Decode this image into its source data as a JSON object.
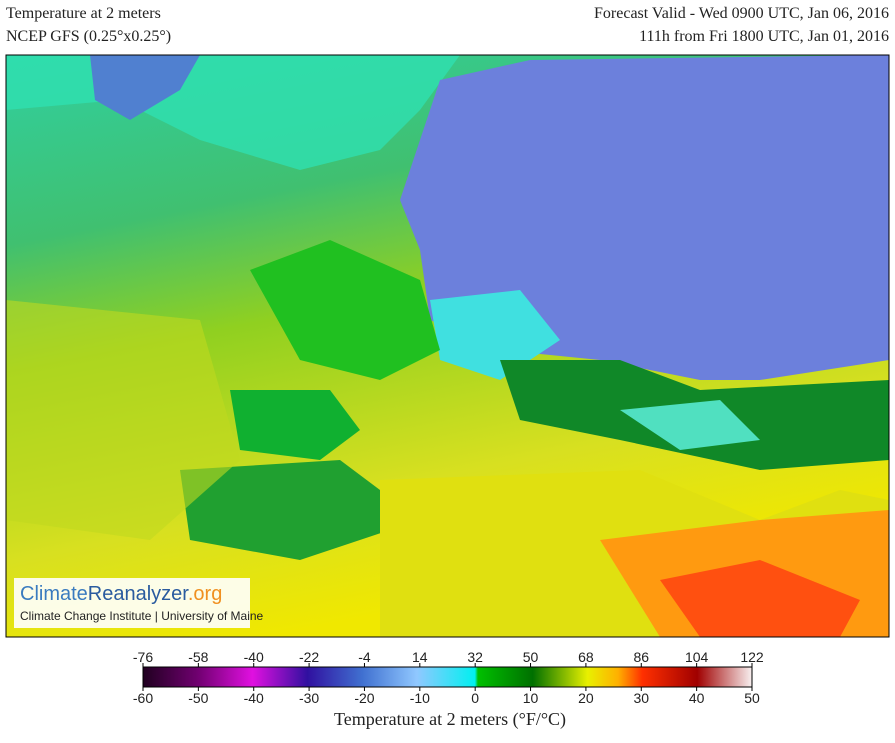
{
  "header": {
    "title": "Temperature at 2 meters",
    "model": "NCEP GFS (0.25°x0.25°)",
    "valid": "Forecast Valid - Wed 0900 UTC, Jan 06, 2016",
    "lead": "111h from Fri 1800 UTC, Jan 01, 2016"
  },
  "logo": {
    "name_part1": "Climate",
    "name_part2": "Reanalyzer",
    "name_part3": ".org",
    "credit": "Climate Change Institute | University of Maine"
  },
  "colorbar": {
    "label": "Temperature at 2 meters (°F/°C)",
    "flim": [
      -76,
      122
    ],
    "fticks": [
      -76,
      -58,
      -40,
      -22,
      -4,
      14,
      32,
      50,
      68,
      86,
      104,
      122
    ],
    "clim": [
      -60,
      50
    ],
    "cticks": [
      -60,
      -50,
      -40,
      -30,
      -20,
      -10,
      0,
      10,
      20,
      30,
      40,
      50
    ]
  }
}
